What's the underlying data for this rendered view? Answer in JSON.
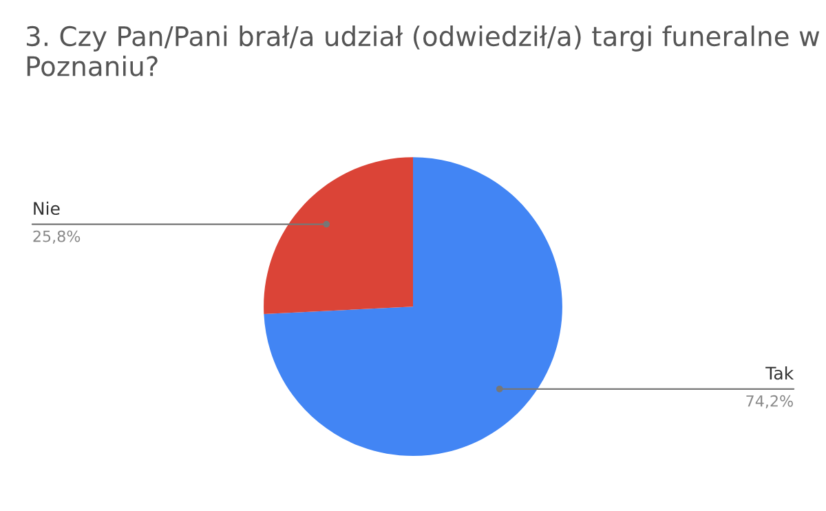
{
  "chart_data": {
    "type": "pie",
    "title": "3. Czy Pan/Pani brał/a udział (odwiedził/a) targi funeralne w Poznaniu?",
    "categories": [
      "Tak",
      "Nie"
    ],
    "values": [
      74.2,
      25.8
    ],
    "colors": [
      "#4285f4",
      "#db4437"
    ],
    "value_labels": [
      "74,2%",
      "25,8%"
    ],
    "legend": false
  }
}
